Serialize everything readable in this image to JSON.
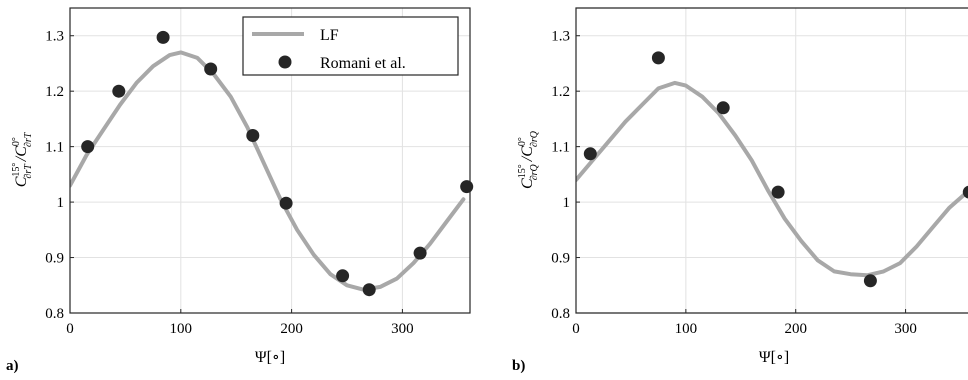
{
  "figure": {
    "panel_a_label": "a)",
    "panel_b_label": "b)"
  },
  "chart_data": [
    {
      "type": "line",
      "panel": "a)",
      "xlabel": "Ψ[∘]",
      "ylabel": "C∂rT15°/C∂rT0°",
      "xlim": [
        0,
        360
      ],
      "ylim": [
        0.8,
        1.35
      ],
      "xticks": [
        "0",
        "100",
        "200",
        "300"
      ],
      "yticks": [
        "0.8",
        "0.9",
        "1",
        "1.1",
        "1.2",
        "1.3"
      ],
      "grid": true,
      "legend_position": "top-right",
      "series": [
        {
          "name": "LF",
          "kind": "line",
          "color": "#a8a8a8",
          "x": [
            0,
            15,
            30,
            45,
            60,
            75,
            90,
            100,
            115,
            130,
            145,
            160,
            175,
            190,
            205,
            220,
            235,
            250,
            265,
            280,
            295,
            310,
            325,
            340,
            355
          ],
          "y": [
            1.03,
            1.085,
            1.13,
            1.175,
            1.215,
            1.245,
            1.265,
            1.27,
            1.26,
            1.23,
            1.19,
            1.135,
            1.07,
            1.005,
            0.95,
            0.905,
            0.87,
            0.85,
            0.842,
            0.847,
            0.862,
            0.89,
            0.925,
            0.965,
            1.005
          ]
        },
        {
          "name": "Romani et al.",
          "kind": "scatter",
          "color": "#262626",
          "x": [
            16,
            44,
            84,
            127,
            165,
            195,
            246,
            270,
            316,
            358
          ],
          "y": [
            1.1,
            1.2,
            1.297,
            1.24,
            1.12,
            0.998,
            0.867,
            0.842,
            0.908,
            1.028
          ]
        }
      ]
    },
    {
      "type": "line",
      "panel": "b)",
      "xlabel": "Ψ[∘]",
      "ylabel": "C∂rQ15°/C∂rQ0°",
      "xlim": [
        0,
        360
      ],
      "ylim": [
        0.8,
        1.35
      ],
      "xticks": [
        "0",
        "100",
        "200",
        "300"
      ],
      "yticks": [
        "0.8",
        "0.9",
        "1",
        "1.1",
        "1.2",
        "1.3"
      ],
      "grid": true,
      "series": [
        {
          "name": "LF",
          "kind": "line",
          "color": "#a8a8a8",
          "x": [
            0,
            15,
            30,
            45,
            60,
            75,
            90,
            100,
            115,
            130,
            145,
            160,
            175,
            190,
            205,
            220,
            235,
            250,
            265,
            280,
            295,
            310,
            325,
            340,
            360
          ],
          "y": [
            1.04,
            1.075,
            1.11,
            1.145,
            1.175,
            1.205,
            1.215,
            1.21,
            1.19,
            1.16,
            1.12,
            1.075,
            1.02,
            0.97,
            0.93,
            0.895,
            0.875,
            0.87,
            0.868,
            0.875,
            0.89,
            0.92,
            0.955,
            0.99,
            1.025
          ]
        },
        {
          "name": "Romani et al.",
          "kind": "scatter",
          "color": "#262626",
          "x": [
            13,
            75,
            134,
            184,
            268,
            358
          ],
          "y": [
            1.087,
            1.26,
            1.17,
            1.018,
            0.858,
            1.018
          ]
        }
      ]
    }
  ]
}
